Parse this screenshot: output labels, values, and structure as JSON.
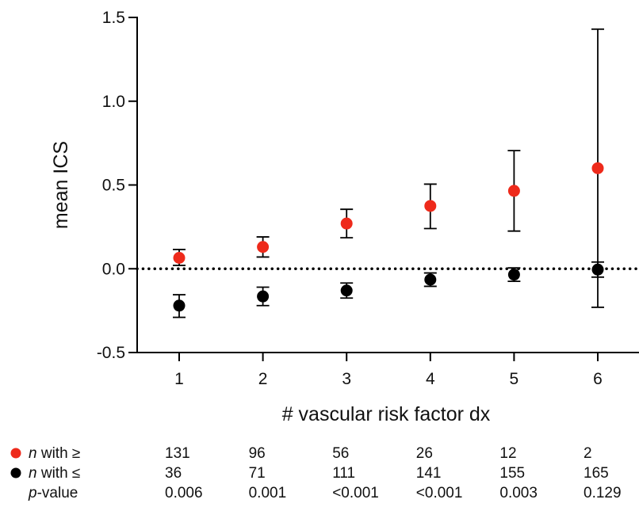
{
  "chart_data": {
    "type": "scatter",
    "xlabel": "# vascular risk factor dx",
    "ylabel": "mean ICS",
    "ylim": [
      -0.5,
      1.5
    ],
    "yticks": [
      "-0.5",
      "0.0",
      "0.5",
      "1.0",
      "1.5"
    ],
    "categories": [
      "1",
      "2",
      "3",
      "4",
      "5",
      "6"
    ],
    "reference_line": {
      "y": 0.0,
      "style": "dotted"
    },
    "series": [
      {
        "name": "n with ≥",
        "color": "#ee2a1b",
        "values": [
          0.065,
          0.13,
          0.27,
          0.375,
          0.465,
          0.6
        ],
        "err_low": [
          0.02,
          0.07,
          0.185,
          0.24,
          0.225,
          -0.23
        ],
        "err_high": [
          0.115,
          0.19,
          0.355,
          0.505,
          0.705,
          1.43
        ]
      },
      {
        "name": "n with ≤",
        "color": "#000000",
        "values": [
          -0.22,
          -0.165,
          -0.13,
          -0.065,
          -0.035,
          -0.005
        ],
        "err_low": [
          -0.29,
          -0.22,
          -0.175,
          -0.105,
          -0.075,
          -0.05
        ],
        "err_high": [
          -0.155,
          -0.11,
          -0.085,
          -0.025,
          0.005,
          0.04
        ]
      }
    ]
  },
  "table": {
    "rows": [
      {
        "label_italic": "n",
        "label_rest": " with ≥",
        "marker_color": "#ee2a1b",
        "values": [
          "131",
          "96",
          "56",
          "26",
          "12",
          "2"
        ]
      },
      {
        "label_italic": "n",
        "label_rest": " with ≤",
        "marker_color": "#000000",
        "values": [
          "36",
          "71",
          "111",
          "141",
          "155",
          "165"
        ]
      },
      {
        "label_italic": "p",
        "label_rest": "-value",
        "marker_color": "",
        "values": [
          "0.006",
          "0.001",
          "<0.001",
          "<0.001",
          "0.003",
          "0.129"
        ]
      }
    ]
  }
}
